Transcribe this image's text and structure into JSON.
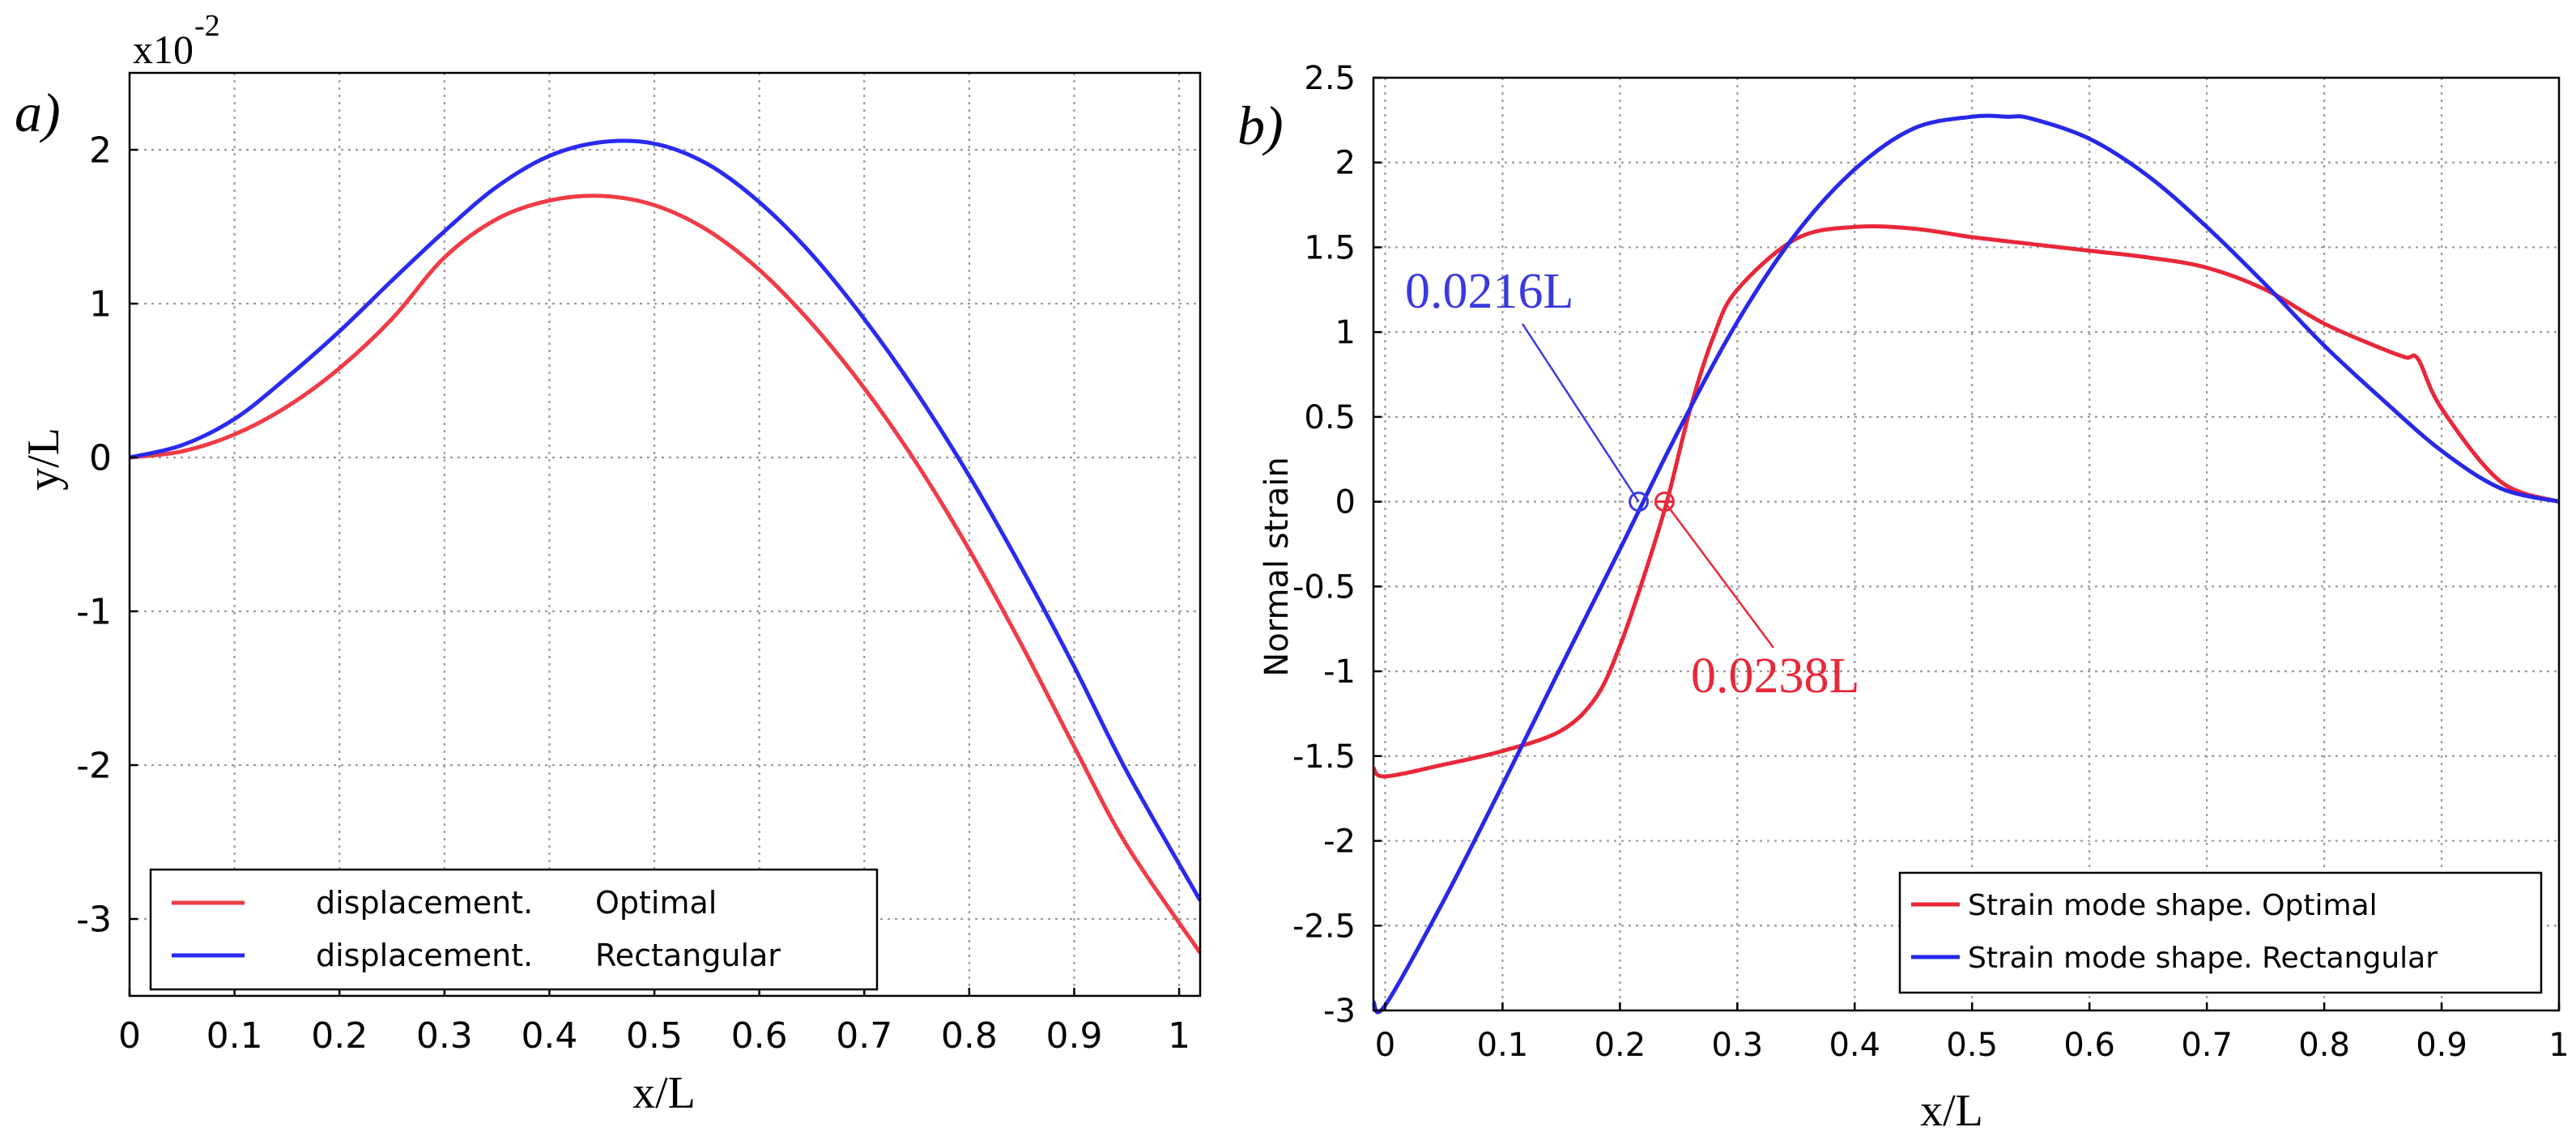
{
  "chart_data": [
    {
      "type": "line",
      "panel_label": "a)",
      "title": "",
      "xlabel": "x/L",
      "ylabel": "y/L",
      "y_exponent_base": "x10",
      "y_exponent": "-2",
      "xlim": [
        0,
        1.02
      ],
      "ylim": [
        -3.5,
        2.5
      ],
      "x_ticks": [
        0,
        0.1,
        0.2,
        0.3,
        0.4,
        0.5,
        0.6,
        0.7,
        0.8,
        0.9,
        1
      ],
      "x_tick_labels": [
        "0",
        "0.1",
        "0.2",
        "0.3",
        "0.4",
        "0.5",
        "0.6",
        "0.7",
        "0.8",
        "0.9",
        "1"
      ],
      "y_ticks": [
        -3,
        -2,
        -1,
        0,
        1,
        2
      ],
      "y_tick_labels": [
        "-3",
        "-2",
        "-1",
        "0",
        "1",
        "2"
      ],
      "grid": true,
      "legend_position": "bottom-left",
      "series": [
        {
          "name": "displacement.",
          "legend_label": "displacement.",
          "legend_suffix": "Optimal",
          "color": "#f03c46",
          "x": [
            0,
            0.05,
            0.1,
            0.15,
            0.2,
            0.25,
            0.3,
            0.35,
            0.4,
            0.45,
            0.5,
            0.55,
            0.6,
            0.65,
            0.7,
            0.75,
            0.8,
            0.85,
            0.9,
            0.95,
            1.02
          ],
          "y": [
            0,
            0.04,
            0.15,
            0.33,
            0.58,
            0.9,
            1.3,
            1.55,
            1.67,
            1.7,
            1.64,
            1.48,
            1.22,
            0.87,
            0.45,
            -0.04,
            -0.6,
            -1.22,
            -1.88,
            -2.52,
            -3.22
          ]
        },
        {
          "name": "displacement.",
          "legend_label": "displacement.",
          "legend_suffix": "Rectangular",
          "color": "#2a2af0",
          "x": [
            0,
            0.05,
            0.1,
            0.15,
            0.2,
            0.25,
            0.3,
            0.35,
            0.4,
            0.45,
            0.5,
            0.55,
            0.6,
            0.65,
            0.7,
            0.75,
            0.8,
            0.85,
            0.9,
            0.95,
            1.02
          ],
          "y": [
            0,
            0.08,
            0.25,
            0.52,
            0.82,
            1.15,
            1.47,
            1.76,
            1.96,
            2.05,
            2.04,
            1.91,
            1.66,
            1.32,
            0.9,
            0.42,
            -0.12,
            -0.72,
            -1.36,
            -2.04,
            -2.88
          ]
        }
      ]
    },
    {
      "type": "line",
      "panel_label": "b)",
      "title": "",
      "xlabel": "x/L",
      "ylabel": "Normal  strain",
      "xlim": [
        -0.01,
        1
      ],
      "ylim": [
        -3,
        2.5
      ],
      "x_ticks": [
        0,
        0.1,
        0.2,
        0.3,
        0.4,
        0.5,
        0.6,
        0.7,
        0.8,
        0.9,
        1
      ],
      "x_tick_labels": [
        "0",
        "0.1",
        "0.2",
        "0.3",
        "0.4",
        "0.5",
        "0.6",
        "0.7",
        "0.8",
        "0.9",
        "1"
      ],
      "y_ticks": [
        -3,
        -2.5,
        -2,
        -1.5,
        -1,
        -0.5,
        0,
        0.5,
        1,
        1.5,
        2,
        2.5
      ],
      "y_tick_labels": [
        "-3",
        "-2.5",
        "-2",
        "-1.5",
        "-1",
        "-0.5",
        "0",
        "0.5",
        "1",
        "1.5",
        "2",
        "2.5"
      ],
      "grid": true,
      "legend_position": "bottom-right",
      "series": [
        {
          "name": "Strain mode shape. Optimal",
          "color": "#e8283a",
          "x": [
            -0.01,
            0,
            0.05,
            0.1,
            0.15,
            0.18,
            0.2,
            0.22,
            0.24,
            0.26,
            0.28,
            0.3,
            0.35,
            0.4,
            0.45,
            0.5,
            0.55,
            0.6,
            0.65,
            0.7,
            0.75,
            0.8,
            0.85,
            0.87,
            0.88,
            0.9,
            0.95,
            1
          ],
          "y": [
            -1.57,
            -1.62,
            -1.55,
            -1.47,
            -1.35,
            -1.15,
            -0.85,
            -0.45,
            0,
            0.55,
            0.98,
            1.25,
            1.55,
            1.62,
            1.61,
            1.56,
            1.52,
            1.48,
            1.44,
            1.38,
            1.25,
            1.05,
            0.9,
            0.85,
            0.84,
            0.55,
            0.12,
            0
          ]
        },
        {
          "name": "Strain mode shape. Rectangular",
          "color": "#2828e8",
          "x": [
            -0.01,
            0,
            0.05,
            0.1,
            0.15,
            0.2,
            0.25,
            0.3,
            0.35,
            0.4,
            0.45,
            0.5,
            0.53,
            0.55,
            0.6,
            0.65,
            0.7,
            0.75,
            0.8,
            0.85,
            0.9,
            0.95,
            1
          ],
          "y": [
            -2.95,
            -2.97,
            -2.35,
            -1.67,
            -0.97,
            -0.28,
            0.42,
            1.06,
            1.58,
            1.96,
            2.2,
            2.27,
            2.27,
            2.26,
            2.14,
            1.92,
            1.62,
            1.28,
            0.92,
            0.6,
            0.3,
            0.08,
            0
          ]
        }
      ],
      "annotations": [
        {
          "text": "0.0216L",
          "x": 0.216,
          "y": 0,
          "color": "#3a3ae0",
          "series": 1
        },
        {
          "text": "0.0238L",
          "x": 0.238,
          "y": 0,
          "color": "#e8283a",
          "series": 0
        }
      ]
    }
  ]
}
